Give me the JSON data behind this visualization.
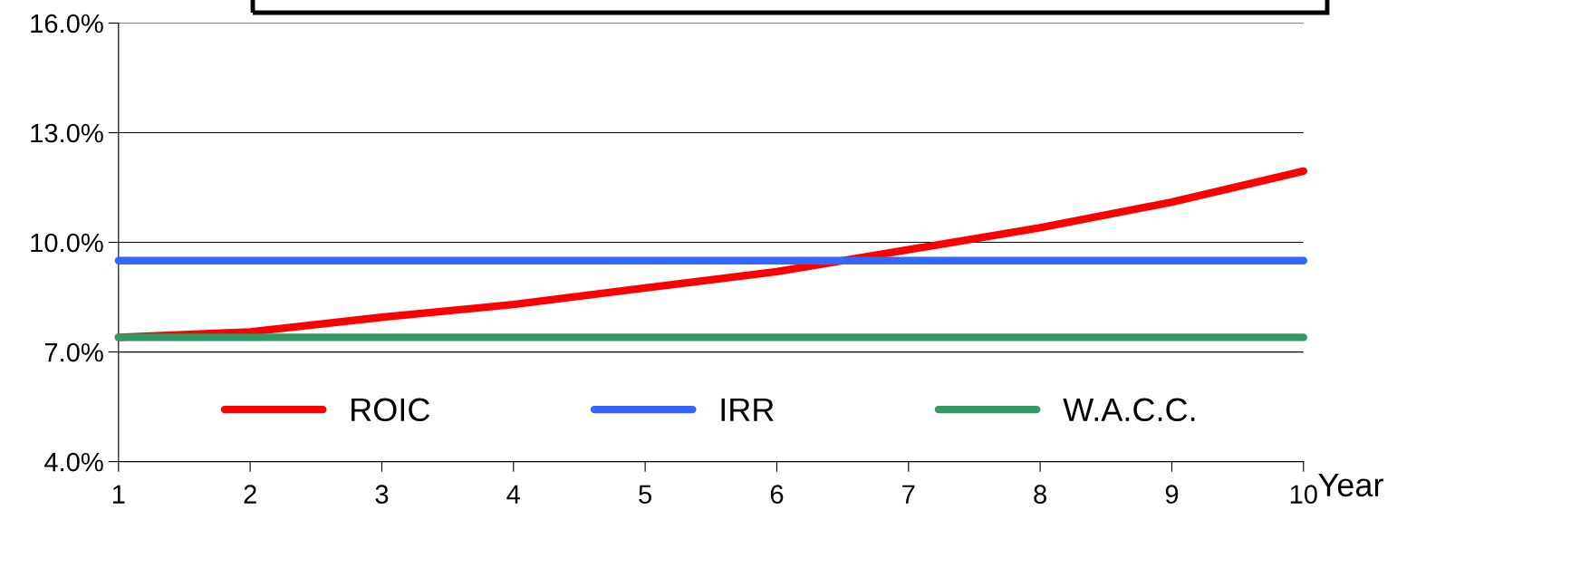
{
  "chart_data": {
    "type": "line",
    "xlabel": "Year",
    "x": [
      1,
      2,
      3,
      4,
      5,
      6,
      7,
      8,
      9,
      10
    ],
    "series": [
      {
        "name": "ROIC",
        "color": "#ff0000",
        "values": [
          7.4,
          7.55,
          7.95,
          8.3,
          8.75,
          9.2,
          9.8,
          10.4,
          11.1,
          11.95
        ]
      },
      {
        "name": "IRR",
        "color": "#3366ff",
        "values": [
          9.5,
          9.5,
          9.5,
          9.5,
          9.5,
          9.5,
          9.5,
          9.5,
          9.5,
          9.5
        ]
      },
      {
        "name": "W.A.C.C.",
        "color": "#339966",
        "values": [
          7.4,
          7.4,
          7.4,
          7.4,
          7.4,
          7.4,
          7.4,
          7.4,
          7.4,
          7.4
        ]
      }
    ],
    "xlim": [
      1,
      10
    ],
    "xticks": [
      1,
      2,
      3,
      4,
      5,
      6,
      7,
      8,
      9,
      10
    ],
    "ylim": [
      4,
      16
    ],
    "yticks": [
      {
        "value": 4,
        "label": "4.0%"
      },
      {
        "value": 7,
        "label": "7.0%"
      },
      {
        "value": 10,
        "label": "10.0%"
      },
      {
        "value": 13,
        "label": "13.0%"
      },
      {
        "value": 16,
        "label": "16.0%"
      }
    ],
    "grid": "y",
    "legend": "bottom",
    "marker": "none",
    "line_style": "solid"
  }
}
